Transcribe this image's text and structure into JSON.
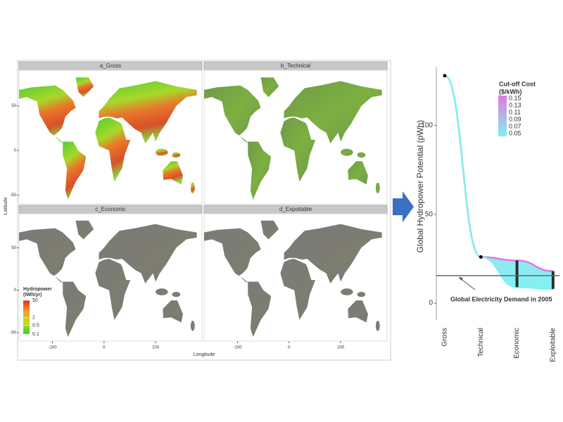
{
  "chart_data": [
    {
      "type": "map",
      "panels": [
        "a_Gross",
        "b_Technical",
        "c_Economic",
        "d_Expoitable"
      ],
      "xlabel": "Longitude",
      "ylabel": "Latitude",
      "xlim": [
        -165,
        190
      ],
      "ylim": [
        -60,
        90
      ],
      "xticks": [
        -100,
        0,
        100
      ],
      "yticks": [
        -50,
        0,
        50
      ],
      "legend": {
        "title": [
          "Hydropower",
          "(tWh/yr)"
        ],
        "ticks": [
          50,
          2,
          0.5,
          0.1
        ],
        "lim": [
          0.1,
          50
        ],
        "log": true,
        "colors": [
          "#e8261c",
          "#f0a030",
          "#b8e020",
          "#33cc33"
        ]
      }
    },
    {
      "type": "line",
      "ylabel": "Global Hydropower Potential (pWh)",
      "categories": [
        "Gross",
        "Technical",
        "Economic",
        "Exploitable"
      ],
      "ylim": [
        -9.5,
        133
      ],
      "yticks": [
        0,
        50,
        100
      ],
      "series": [
        {
          "color": "#e07ae0",
          "values": [
            128,
            26,
            24,
            18
          ]
        },
        {
          "color": "#7ff0f0",
          "values": [
            128,
            26,
            9,
            8
          ]
        }
      ],
      "hline": {
        "value": 15.5,
        "label": "Global Electricity Demand in 2005"
      },
      "legend": {
        "title": [
          "Cut-off Cost",
          "($/kWh)"
        ],
        "labels": [
          0.15,
          0.13,
          0.11,
          0.09,
          0.07,
          0.05
        ]
      }
    }
  ]
}
